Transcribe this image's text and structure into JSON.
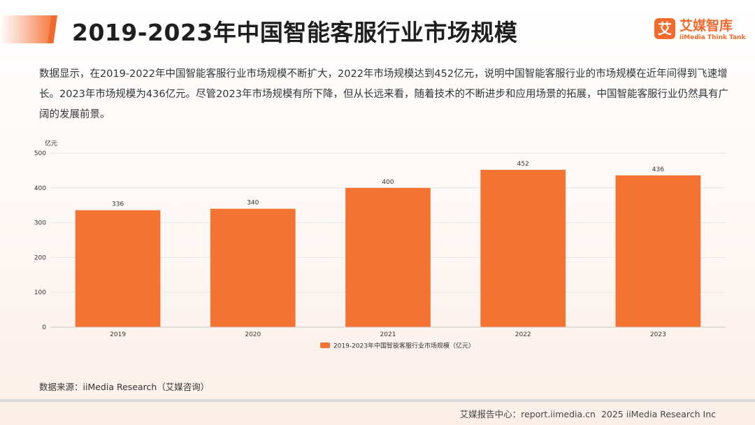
{
  "page": {
    "title": "2019-2023年中国智能客服行业市场规模",
    "summary": "数据显示，在2019-2022年中国智能客服行业市场规模不断扩大，2022年市场规模达到452亿元，说明中国智能客服行业的市场规模在近年间得到飞速增长。2023年市场规模为436亿元。尽管2023年市场规模有所下降，但从长远来看，随着技术的不断进步和应用场景的拓展，中国智能客服行业仍然具有广阔的发展前景。",
    "source": "数据来源：iiMedia Research（艾媒咨询）"
  },
  "logo": {
    "mark": "艾",
    "name": "艾媒智库",
    "sub": "iiMedia Think Tank"
  },
  "footer": {
    "center_label": "艾媒报告中心：report.iimedia.cn",
    "copyright": "2025 iiMedia Research Inc"
  },
  "colors": {
    "bar": "#f47330",
    "accent": "#ef6a2d",
    "grid": "#e6e6e6",
    "axis": "#c8c8c8"
  },
  "chart_data": {
    "type": "bar",
    "categories": [
      "2019",
      "2020",
      "2021",
      "2022",
      "2023"
    ],
    "series": [
      {
        "name": "2019-2023年中国智能客服行业市场规模（亿元）",
        "values": [
          336,
          340,
          400,
          452,
          436
        ]
      }
    ],
    "ylabel": "亿元",
    "ylim": [
      0,
      500
    ],
    "yticks": [
      0,
      100,
      200,
      300,
      400,
      500
    ],
    "data_labels": true,
    "grid": true,
    "legend_position": "bottom"
  }
}
